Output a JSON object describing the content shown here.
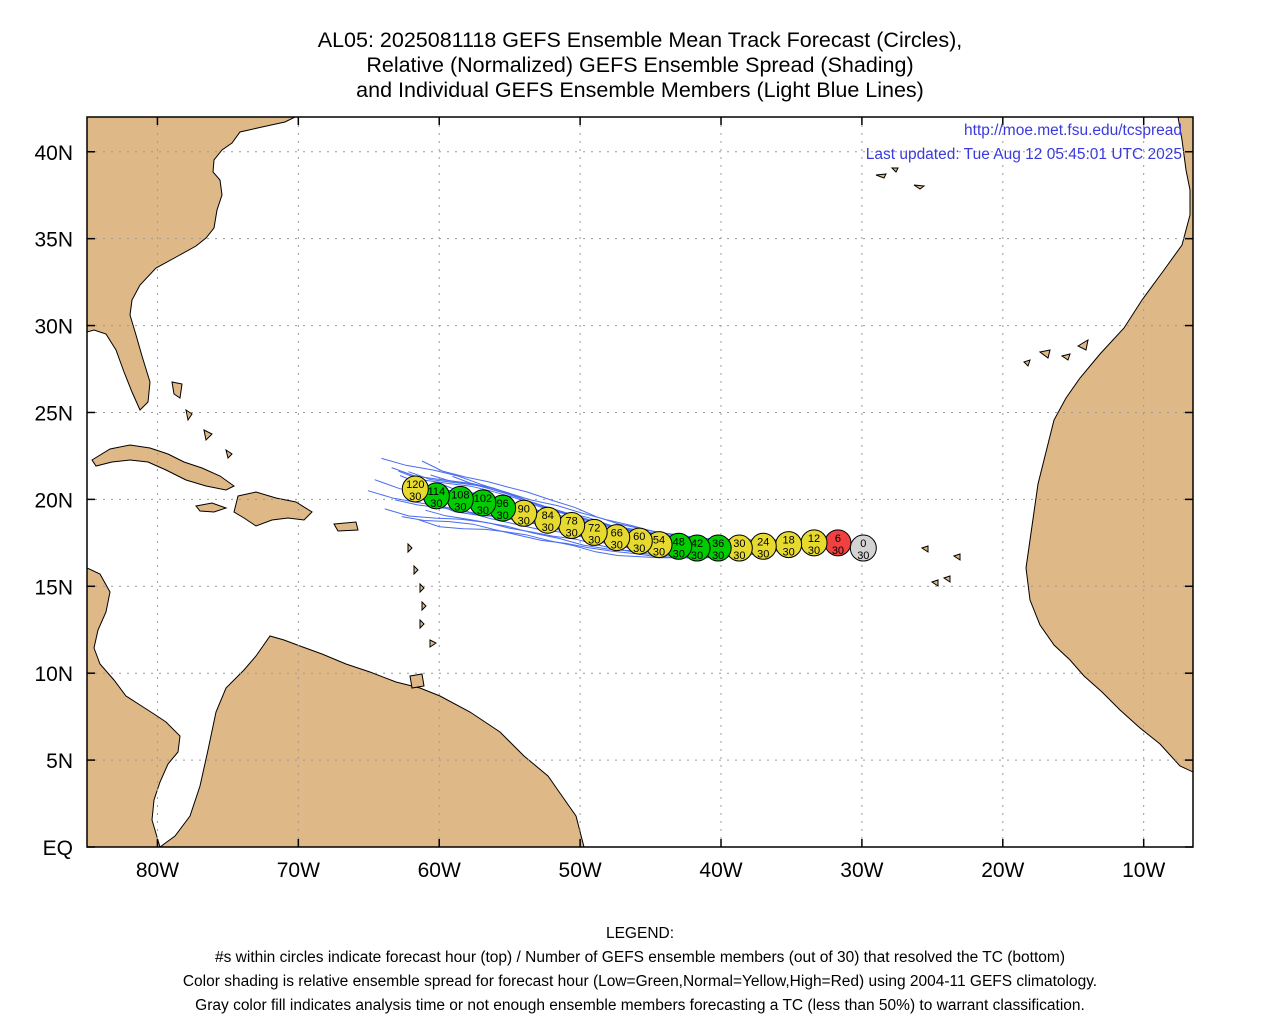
{
  "title": {
    "line1": "AL05: 2025081118 GEFS Ensemble Mean Track Forecast (Circles),",
    "line2": "Relative (Normalized) GEFS Ensemble Spread (Shading)",
    "line3": "and Individual GEFS Ensemble Members (Light Blue Lines)"
  },
  "info": {
    "url": "http://moe.met.fsu.edu/tcspread",
    "updated": "Last updated: Tue Aug 12 05:45:01 UTC 2025"
  },
  "axes": {
    "lat_labels": [
      "40N",
      "35N",
      "30N",
      "25N",
      "20N",
      "15N",
      "10N",
      "5N",
      "EQ"
    ],
    "lat_values": [
      40,
      35,
      30,
      25,
      20,
      15,
      10,
      5,
      0
    ],
    "lon_labels": [
      "80W",
      "70W",
      "60W",
      "50W",
      "40W",
      "30W",
      "20W",
      "10W"
    ],
    "lon_values": [
      -80,
      -70,
      -60,
      -50,
      -40,
      -30,
      -20,
      -10
    ],
    "lon_range": [
      -85,
      -6.5
    ],
    "lat_range": [
      0,
      42
    ]
  },
  "colors": {
    "land": "#deb887",
    "member_track": "#4a6cf0",
    "low_spread": "#00cc00",
    "normal_spread": "#e6d930",
    "high_spread": "#f04040",
    "analysis": "#d3d3d3"
  },
  "track_points": [
    {
      "hour": "0",
      "members": "30",
      "lon": -29.9,
      "lat": 17.2,
      "spread": "gray"
    },
    {
      "hour": "6",
      "members": "30",
      "lon": -31.7,
      "lat": 17.5,
      "spread": "high"
    },
    {
      "hour": "12",
      "members": "30",
      "lon": -33.4,
      "lat": 17.5,
      "spread": "normal"
    },
    {
      "hour": "18",
      "members": "30",
      "lon": -35.2,
      "lat": 17.4,
      "spread": "normal"
    },
    {
      "hour": "24",
      "members": "30",
      "lon": -37.0,
      "lat": 17.3,
      "spread": "normal"
    },
    {
      "hour": "30",
      "members": "30",
      "lon": -38.7,
      "lat": 17.2,
      "spread": "normal"
    },
    {
      "hour": "36",
      "members": "30",
      "lon": -40.2,
      "lat": 17.2,
      "spread": "low"
    },
    {
      "hour": "42",
      "members": "30",
      "lon": -41.7,
      "lat": 17.2,
      "spread": "low"
    },
    {
      "hour": "48",
      "members": "30",
      "lon": -43.0,
      "lat": 17.3,
      "spread": "low"
    },
    {
      "hour": "54",
      "members": "30",
      "lon": -44.4,
      "lat": 17.4,
      "spread": "normal"
    },
    {
      "hour": "60",
      "members": "30",
      "lon": -45.8,
      "lat": 17.6,
      "spread": "normal"
    },
    {
      "hour": "66",
      "members": "30",
      "lon": -47.4,
      "lat": 17.8,
      "spread": "normal"
    },
    {
      "hour": "72",
      "members": "30",
      "lon": -49.0,
      "lat": 18.1,
      "spread": "normal"
    },
    {
      "hour": "78",
      "members": "30",
      "lon": -50.6,
      "lat": 18.5,
      "spread": "normal"
    },
    {
      "hour": "84",
      "members": "30",
      "lon": -52.3,
      "lat": 18.8,
      "spread": "normal"
    },
    {
      "hour": "90",
      "members": "30",
      "lon": -54.0,
      "lat": 19.2,
      "spread": "normal"
    },
    {
      "hour": "96",
      "members": "30",
      "lon": -55.5,
      "lat": 19.5,
      "spread": "low"
    },
    {
      "hour": "102",
      "members": "30",
      "lon": -56.9,
      "lat": 19.8,
      "spread": "low"
    },
    {
      "hour": "108",
      "members": "30",
      "lon": -58.5,
      "lat": 20.0,
      "spread": "low"
    },
    {
      "hour": "114",
      "members": "30",
      "lon": -60.2,
      "lat": 20.2,
      "spread": "low"
    },
    {
      "hour": "120",
      "members": "30",
      "lon": -61.7,
      "lat": 20.6,
      "spread": "normal"
    }
  ],
  "legend": {
    "heading": "LEGEND:",
    "line1": "#s within circles indicate forecast hour (top) / Number of GEFS ensemble members (out of 30) that resolved the TC (bottom)",
    "line2": "Color shading is relative ensemble spread for forecast hour (Low=Green,Normal=Yellow,High=Red) using 2004-11 GEFS climatology.",
    "line3": "Gray color fill indicates analysis time or not enough ensemble members forecasting a TC (less than 50%) to warrant classification."
  }
}
